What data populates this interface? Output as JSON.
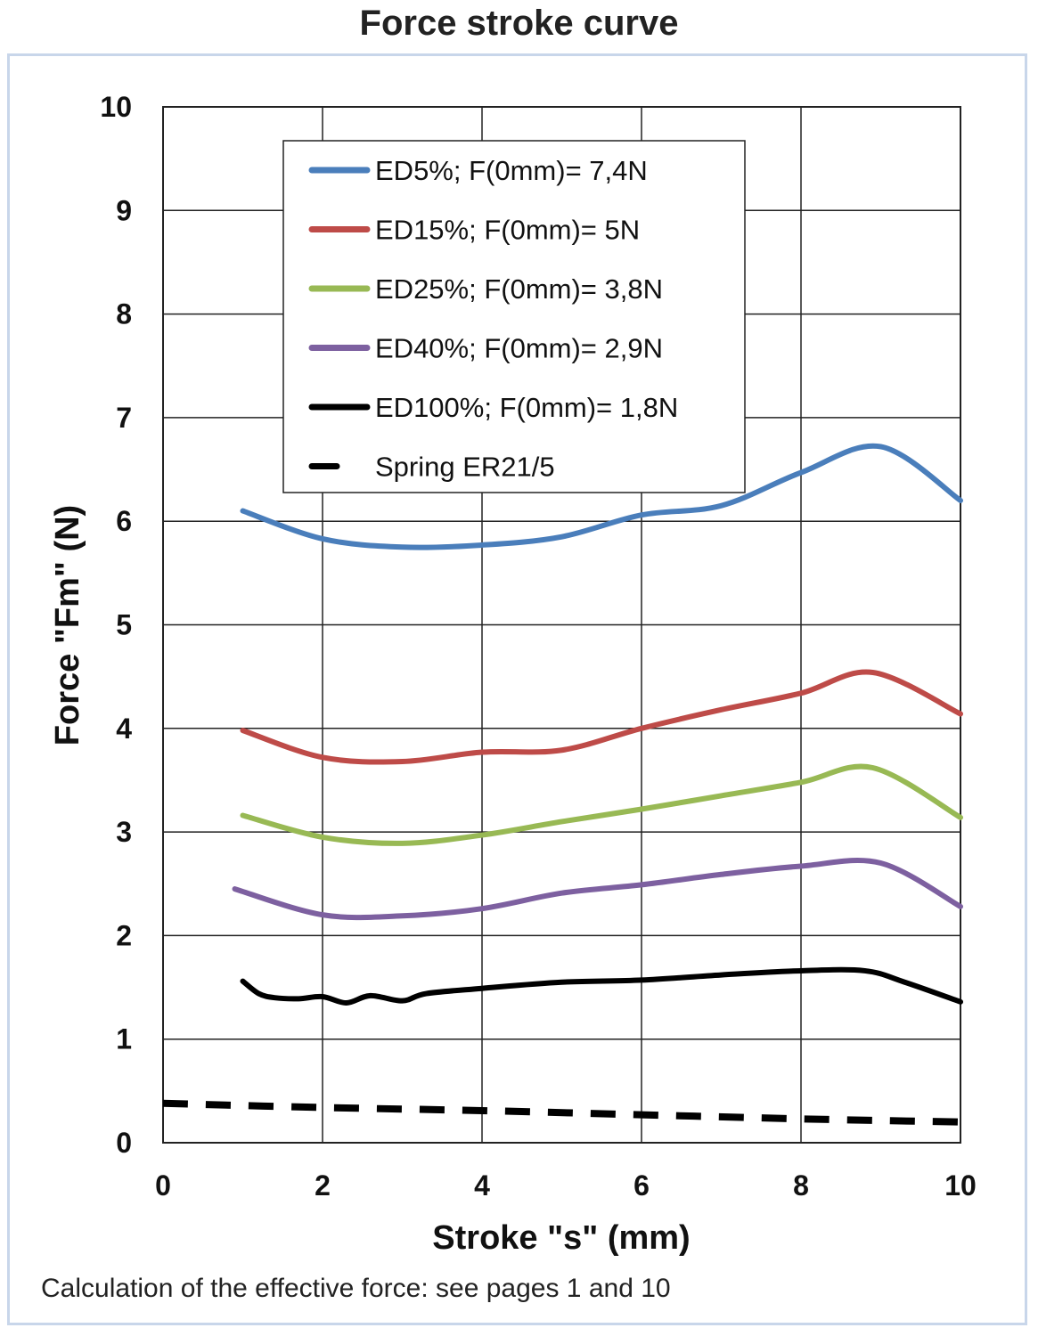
{
  "chart_data": {
    "type": "line",
    "title": "Force stroke curve",
    "xlabel": "Stroke \"s\" (mm)",
    "ylabel": "Force \"Fm\" (N)",
    "xlim": [
      0,
      10
    ],
    "ylim": [
      0,
      10
    ],
    "xticks": [
      0,
      2,
      4,
      6,
      8,
      10
    ],
    "yticks": [
      0,
      1,
      2,
      3,
      4,
      5,
      6,
      7,
      8,
      9,
      10
    ],
    "grid": true,
    "legend_position": "top-center",
    "series": [
      {
        "name": "ED5%; F(0mm)= 7,4N",
        "color": "#4a7ebb",
        "dash": false,
        "x": [
          1,
          2,
          3,
          4,
          5,
          6,
          7,
          8,
          9,
          10
        ],
        "y": [
          6.1,
          5.83,
          5.75,
          5.77,
          5.85,
          6.06,
          6.15,
          6.47,
          6.72,
          6.2
        ]
      },
      {
        "name": "ED15%; F(0mm)= 5N",
        "color": "#be4b48",
        "dash": false,
        "x": [
          1,
          2,
          3,
          4,
          5,
          6,
          7,
          8,
          8.9,
          10
        ],
        "y": [
          3.98,
          3.72,
          3.68,
          3.77,
          3.79,
          4.0,
          4.18,
          4.34,
          4.54,
          4.14
        ]
      },
      {
        "name": "ED25%; F(0mm)= 3,8N",
        "color": "#98b954",
        "dash": false,
        "x": [
          1,
          2,
          3,
          4,
          5,
          6,
          7,
          8,
          8.9,
          10
        ],
        "y": [
          3.16,
          2.95,
          2.89,
          2.97,
          3.1,
          3.22,
          3.35,
          3.48,
          3.62,
          3.14
        ]
      },
      {
        "name": "ED40%; F(0mm)= 2,9N",
        "color": "#7d60a0",
        "dash": false,
        "x": [
          0.9,
          2,
          3,
          4,
          5,
          6,
          7,
          8,
          9,
          10
        ],
        "y": [
          2.45,
          2.2,
          2.19,
          2.26,
          2.41,
          2.49,
          2.59,
          2.67,
          2.7,
          2.28
        ]
      },
      {
        "name": "ED100%; F(0mm)= 1,8N",
        "color": "#000000",
        "dash": false,
        "x": [
          1,
          1.2,
          1.4,
          1.7,
          2,
          2.3,
          2.6,
          3,
          3.3,
          4,
          5,
          6,
          7,
          8,
          8.8,
          9.3,
          10
        ],
        "y": [
          1.56,
          1.44,
          1.4,
          1.39,
          1.41,
          1.35,
          1.42,
          1.37,
          1.44,
          1.49,
          1.55,
          1.57,
          1.62,
          1.66,
          1.66,
          1.55,
          1.36
        ]
      },
      {
        "name": "Spring ER21/5",
        "color": "#000000",
        "dash": true,
        "x": [
          0,
          2,
          4,
          6,
          8,
          10
        ],
        "y": [
          0.38,
          0.34,
          0.31,
          0.27,
          0.23,
          0.2
        ]
      }
    ]
  },
  "note": "Calculation of the effective force: see pages 1 and 10"
}
